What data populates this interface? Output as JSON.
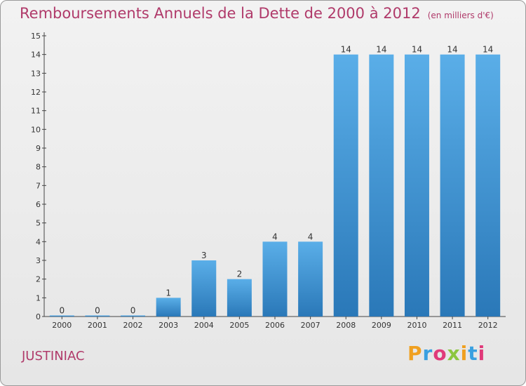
{
  "header": {
    "title": "Remboursements Annuels de la Dette de 2000 à 2012",
    "subtitle": "(en milliers d'€)"
  },
  "footer": {
    "commune": "JUSTINIAC",
    "logo_letters": [
      {
        "ch": "P",
        "color": "#f0a020"
      },
      {
        "ch": "r",
        "color": "#3aa0e0"
      },
      {
        "ch": "o",
        "color": "#e03a7a"
      },
      {
        "ch": "x",
        "color": "#8cc63f"
      },
      {
        "ch": "i",
        "color": "#f0a020"
      },
      {
        "ch": "t",
        "color": "#3aa0e0"
      },
      {
        "ch": "i",
        "color": "#e03a7a"
      }
    ]
  },
  "chart_data": {
    "type": "bar",
    "categories": [
      "2000",
      "2001",
      "2002",
      "2003",
      "2004",
      "2005",
      "2006",
      "2007",
      "2008",
      "2009",
      "2010",
      "2011",
      "2012"
    ],
    "values": [
      0,
      0,
      0,
      1,
      3,
      2,
      4,
      4,
      14,
      14,
      14,
      14,
      14
    ],
    "value_labels": [
      "0",
      "0",
      "0",
      "1",
      "3",
      "2",
      "4",
      "4",
      "14",
      "14",
      "14",
      "14",
      "14"
    ],
    "yticks": [
      0,
      1,
      2,
      3,
      4,
      5,
      6,
      7,
      8,
      9,
      10,
      11,
      12,
      13,
      14,
      15
    ],
    "ylim": [
      0,
      15
    ],
    "bar_color_top": "#5aaee8",
    "bar_color_bottom": "#2a78b8",
    "grid": false
  }
}
